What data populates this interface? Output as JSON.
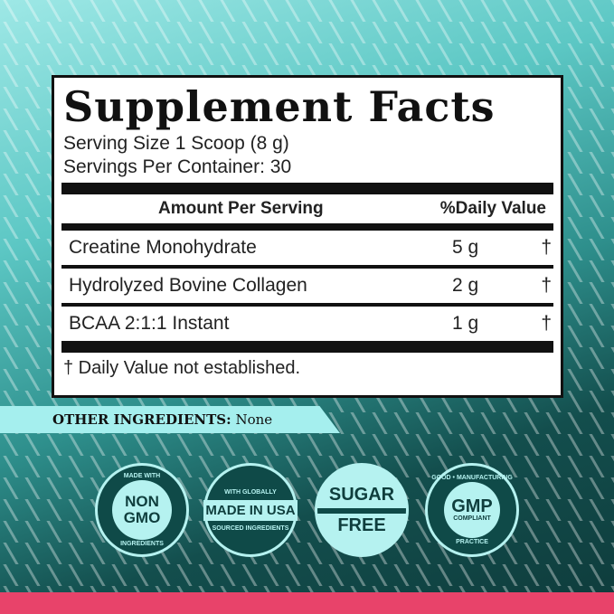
{
  "label": {
    "title": "Supplement Facts",
    "serving_size": "Serving Size 1 Scoop (8 g)",
    "servings_per_container": "Servings Per Container: 30",
    "col_amount": "Amount Per Serving",
    "col_dv": "%Daily Value",
    "rows": [
      {
        "name": "Creatine Monohydrate",
        "amount": "5 g",
        "dv": "†"
      },
      {
        "name": "Hydrolyzed Bovine Collagen",
        "amount": "2 g",
        "dv": "†"
      },
      {
        "name": "BCAA 2:1:1 Instant",
        "amount": "1 g",
        "dv": "†"
      }
    ],
    "footnote": "† Daily Value not established."
  },
  "other": {
    "label": "OTHER INGREDIENTS:",
    "value": "None"
  },
  "badges": [
    {
      "top": "MADE WITH",
      "main": "NON GMO",
      "bottom": "INGREDIENTS"
    },
    {
      "top": "WITH GLOBALLY",
      "main": "MADE IN USA",
      "bottom": "SOURCED INGREDIENTS"
    },
    {
      "top": "SUGAR",
      "main": "FREE",
      "bottom": ""
    },
    {
      "top": "GOOD • MANUFACTURING",
      "main": "GMP",
      "sub": "COMPLIANT",
      "bottom": "PRACTICE"
    }
  ],
  "colors": {
    "accent": "#a5efee",
    "pink": "#e8436a",
    "dark": "#0f4a48"
  }
}
